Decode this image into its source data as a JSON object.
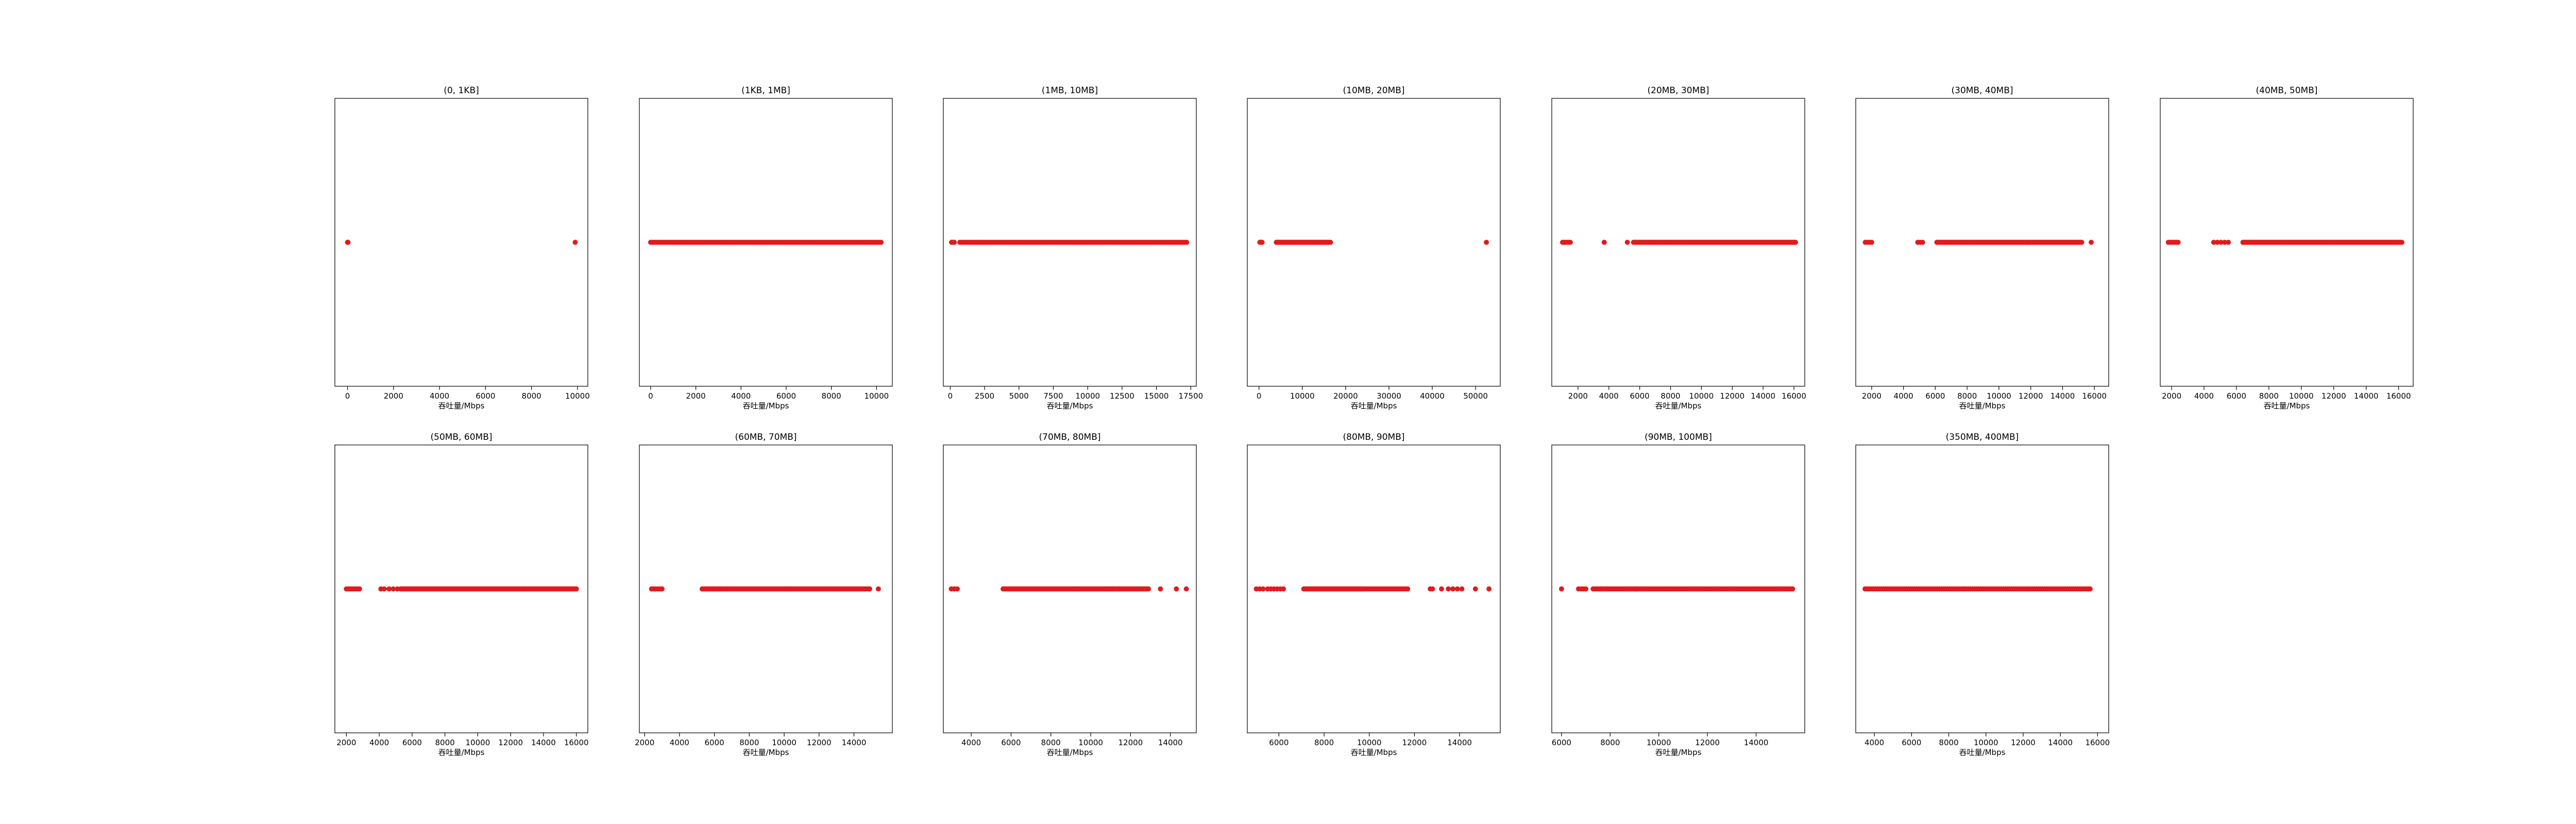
{
  "figure": {
    "background": "#ffffff",
    "marker_color": "#e31a1c"
  },
  "chart_data": [
    {
      "type": "scatter",
      "title": "(0, 1KB]",
      "xlabel": "吞吐量/Mbps",
      "xlim": [
        -550,
        10450
      ],
      "ticks": [
        0,
        2000,
        4000,
        6000,
        8000,
        10000
      ],
      "y": 0,
      "clusters": [
        [
          0,
          20,
          3
        ],
        [
          9900,
          9900,
          1
        ]
      ]
    },
    {
      "type": "scatter",
      "title": "(1KB, 1MB]",
      "xlabel": "吞吐量/Mbps",
      "xlim": [
        -500,
        10700
      ],
      "ticks": [
        0,
        2000,
        4000,
        6000,
        8000,
        10000
      ],
      "y": 0,
      "clusters": [
        [
          0,
          10200,
          110
        ]
      ]
    },
    {
      "type": "scatter",
      "title": "(1MB, 10MB]",
      "xlabel": "吞吐量/Mbps",
      "xlim": [
        -500,
        17900
      ],
      "ticks": [
        0,
        2500,
        5000,
        7500,
        10000,
        12500,
        15000,
        17500
      ],
      "y": 0,
      "clusters": [
        [
          100,
          300,
          4
        ],
        [
          700,
          17200,
          110
        ]
      ]
    },
    {
      "type": "scatter",
      "title": "(10MB, 20MB]",
      "xlabel": "吞吐量/Mbps",
      "xlim": [
        -2700,
        55700
      ],
      "ticks": [
        0,
        10000,
        20000,
        30000,
        40000,
        50000
      ],
      "y": 0,
      "clusters": [
        [
          200,
          700,
          4
        ],
        [
          4000,
          16500,
          45
        ],
        [
          52500,
          52500,
          1
        ]
      ]
    },
    {
      "type": "scatter",
      "title": "(20MB, 30MB]",
      "xlabel": "吞吐量/Mbps",
      "xlim": [
        300,
        16700
      ],
      "ticks": [
        2000,
        4000,
        6000,
        8000,
        10000,
        12000,
        14000,
        16000
      ],
      "y": 0,
      "clusters": [
        [
          1000,
          1500,
          5
        ],
        [
          3700,
          3700,
          1
        ],
        [
          5200,
          5200,
          1
        ],
        [
          5600,
          16100,
          110
        ]
      ]
    },
    {
      "type": "scatter",
      "title": "(30MB, 40MB]",
      "xlabel": "吞吐量/Mbps",
      "xlim": [
        1000,
        16900
      ],
      "ticks": [
        2000,
        4000,
        6000,
        8000,
        10000,
        12000,
        14000,
        16000
      ],
      "y": 0,
      "clusters": [
        [
          1600,
          2000,
          4
        ],
        [
          4900,
          5200,
          3
        ],
        [
          6100,
          15200,
          100
        ],
        [
          15800,
          15800,
          1
        ]
      ]
    },
    {
      "type": "scatter",
      "title": "(40MB, 50MB]",
      "xlabel": "吞吐量/Mbps",
      "xlim": [
        1300,
        16900
      ],
      "ticks": [
        2000,
        4000,
        6000,
        8000,
        10000,
        12000,
        14000,
        16000
      ],
      "y": 0,
      "clusters": [
        [
          1800,
          2400,
          6
        ],
        [
          4600,
          5500,
          5
        ],
        [
          6400,
          16200,
          110
        ]
      ]
    },
    {
      "type": "scatter",
      "title": "(50MB, 60MB]",
      "xlabel": "吞吐量/Mbps",
      "xlim": [
        1300,
        16700
      ],
      "ticks": [
        2000,
        4000,
        6000,
        8000,
        10000,
        12000,
        14000,
        16000
      ],
      "y": 0,
      "clusters": [
        [
          2000,
          2800,
          8
        ],
        [
          4100,
          4300,
          2
        ],
        [
          4600,
          5100,
          3
        ],
        [
          5300,
          16000,
          110
        ]
      ]
    },
    {
      "type": "scatter",
      "title": "(60MB, 70MB]",
      "xlabel": "吞吐量/Mbps",
      "xlim": [
        1700,
        16200
      ],
      "ticks": [
        2000,
        4000,
        6000,
        8000,
        10000,
        12000,
        14000
      ],
      "y": 0,
      "clusters": [
        [
          2400,
          3000,
          6
        ],
        [
          5300,
          14900,
          100
        ],
        [
          15400,
          15400,
          1
        ]
      ]
    },
    {
      "type": "scatter",
      "title": "(70MB, 80MB]",
      "xlabel": "吞吐量/Mbps",
      "xlim": [
        2600,
        15300
      ],
      "ticks": [
        4000,
        6000,
        8000,
        10000,
        12000,
        14000
      ],
      "y": 0,
      "clusters": [
        [
          3000,
          3300,
          3
        ],
        [
          5600,
          12900,
          100
        ],
        [
          13500,
          13500,
          1
        ],
        [
          14300,
          14300,
          1
        ],
        [
          14800,
          14800,
          1
        ]
      ]
    },
    {
      "type": "scatter",
      "title": "(80MB, 90MB]",
      "xlabel": "吞吐量/Mbps",
      "xlim": [
        4600,
        15800
      ],
      "ticks": [
        6000,
        8000,
        10000,
        12000,
        14000
      ],
      "y": 0,
      "clusters": [
        [
          5000,
          5300,
          3
        ],
        [
          5500,
          6200,
          6
        ],
        [
          7100,
          9800,
          40
        ],
        [
          9900,
          11700,
          22
        ],
        [
          12700,
          12800,
          2
        ],
        [
          13200,
          13200,
          1
        ],
        [
          13500,
          14100,
          4
        ],
        [
          14700,
          14700,
          1
        ],
        [
          15300,
          15300,
          1
        ]
      ]
    },
    {
      "type": "scatter",
      "title": "(90MB, 100MB]",
      "xlabel": "吞吐量/Mbps",
      "xlim": [
        5600,
        16000
      ],
      "ticks": [
        6000,
        8000,
        10000,
        12000,
        14000
      ],
      "y": 0,
      "clusters": [
        [
          6000,
          6000,
          1
        ],
        [
          6700,
          7000,
          4
        ],
        [
          7300,
          15500,
          110
        ]
      ]
    },
    {
      "type": "scatter",
      "title": "(350MB, 400MB]",
      "xlabel": "吞吐量/Mbps",
      "xlim": [
        3000,
        16600
      ],
      "ticks": [
        4000,
        6000,
        8000,
        10000,
        12000,
        14000,
        16000
      ],
      "y": 0,
      "clusters": [
        [
          3500,
          15600,
          110
        ]
      ]
    }
  ]
}
